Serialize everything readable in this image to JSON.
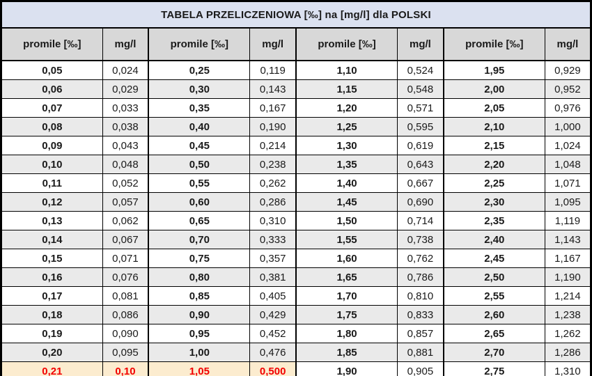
{
  "table": {
    "title": "TABELA PRZELICZENIOWA [‰] na [mg/l] dla POLSKI",
    "columns": [
      "promile [‰]",
      "mg/l",
      "promile [‰]",
      "mg/l",
      "promile [‰]",
      "mg/l",
      "promile [‰]",
      "mg/l"
    ],
    "rows": [
      [
        "0,05",
        "0,024",
        "0,25",
        "0,119",
        "1,10",
        "0,524",
        "1,95",
        "0,929"
      ],
      [
        "0,06",
        "0,029",
        "0,30",
        "0,143",
        "1,15",
        "0,548",
        "2,00",
        "0,952"
      ],
      [
        "0,07",
        "0,033",
        "0,35",
        "0,167",
        "1,20",
        "0,571",
        "2,05",
        "0,976"
      ],
      [
        "0,08",
        "0,038",
        "0,40",
        "0,190",
        "1,25",
        "0,595",
        "2,10",
        "1,000"
      ],
      [
        "0,09",
        "0,043",
        "0,45",
        "0,214",
        "1,30",
        "0,619",
        "2,15",
        "1,024"
      ],
      [
        "0,10",
        "0,048",
        "0,50",
        "0,238",
        "1,35",
        "0,643",
        "2,20",
        "1,048"
      ],
      [
        "0,11",
        "0,052",
        "0,55",
        "0,262",
        "1,40",
        "0,667",
        "2,25",
        "1,071"
      ],
      [
        "0,12",
        "0,057",
        "0,60",
        "0,286",
        "1,45",
        "0,690",
        "2,30",
        "1,095"
      ],
      [
        "0,13",
        "0,062",
        "0,65",
        "0,310",
        "1,50",
        "0,714",
        "2,35",
        "1,119"
      ],
      [
        "0,14",
        "0,067",
        "0,70",
        "0,333",
        "1,55",
        "0,738",
        "2,40",
        "1,143"
      ],
      [
        "0,15",
        "0,071",
        "0,75",
        "0,357",
        "1,60",
        "0,762",
        "2,45",
        "1,167"
      ],
      [
        "0,16",
        "0,076",
        "0,80",
        "0,381",
        "1,65",
        "0,786",
        "2,50",
        "1,190"
      ],
      [
        "0,17",
        "0,081",
        "0,85",
        "0,405",
        "1,70",
        "0,810",
        "2,55",
        "1,214"
      ],
      [
        "0,18",
        "0,086",
        "0,90",
        "0,429",
        "1,75",
        "0,833",
        "2,60",
        "1,238"
      ],
      [
        "0,19",
        "0,090",
        "0,95",
        "0,452",
        "1,80",
        "0,857",
        "2,65",
        "1,262"
      ],
      [
        "0,20",
        "0,095",
        "1,00",
        "0,476",
        "1,85",
        "0,881",
        "2,70",
        "1,286"
      ],
      [
        "0,21",
        "0,10",
        "1,05",
        "0,500",
        "1,90",
        "0,905",
        "2,75",
        "1,310"
      ]
    ],
    "highlight": {
      "row_index": 16,
      "col_indices": [
        0,
        1,
        2,
        3
      ],
      "bg": "#fceccf",
      "text_color": "#f20000"
    },
    "colors": {
      "title_bg": "#dbe1f0",
      "header_bg": "#d8d8d8",
      "row_alt_bg": "#eaeaea",
      "border": "#000000"
    }
  }
}
